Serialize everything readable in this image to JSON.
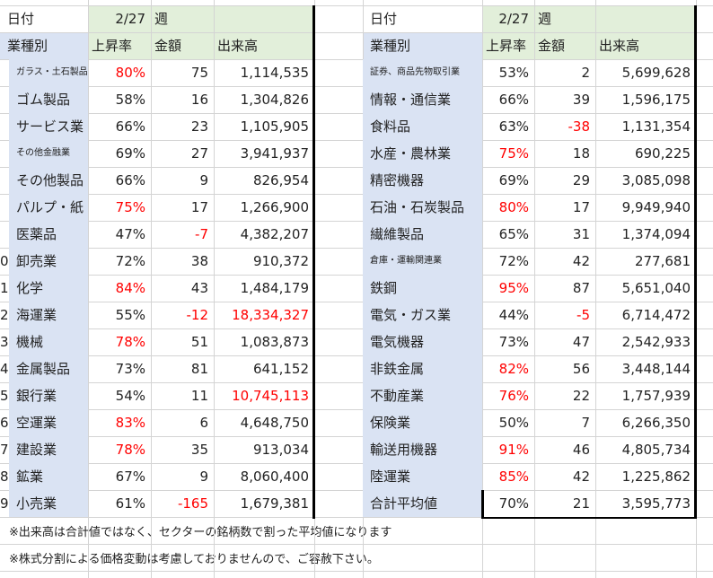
{
  "header": {
    "date_label": "日付",
    "date_value": "2/27",
    "week_label": "週",
    "sector_label": "業種別",
    "rise_label": "上昇率",
    "amount_label": "金額",
    "volume_label": "出来高"
  },
  "colors": {
    "header_green": "#e2efda",
    "label_blue": "#dae3f3",
    "negative_red": "#ff0000"
  },
  "left_rows": [
    {
      "sector": "ガラス・土石製品",
      "rise": "80%",
      "amount": "75",
      "volume": "1,114,535",
      "rise_red": true,
      "amount_red": false,
      "volume_red": false,
      "small": true
    },
    {
      "sector": "ゴム製品",
      "rise": "58%",
      "amount": "16",
      "volume": "1,304,826",
      "rise_red": false,
      "amount_red": false,
      "volume_red": false,
      "small": false
    },
    {
      "sector": "サービス業",
      "rise": "66%",
      "amount": "23",
      "volume": "1,105,905",
      "rise_red": false,
      "amount_red": false,
      "volume_red": false,
      "small": false
    },
    {
      "sector": "その他金融業",
      "rise": "69%",
      "amount": "27",
      "volume": "3,941,937",
      "rise_red": false,
      "amount_red": false,
      "volume_red": false,
      "small": true
    },
    {
      "sector": "その他製品",
      "rise": "66%",
      "amount": "9",
      "volume": "826,954",
      "rise_red": false,
      "amount_red": false,
      "volume_red": false,
      "small": false
    },
    {
      "sector": "パルプ・紙",
      "rise": "75%",
      "amount": "17",
      "volume": "1,266,900",
      "rise_red": true,
      "amount_red": false,
      "volume_red": false,
      "small": false
    },
    {
      "sector": "医薬品",
      "rise": "47%",
      "amount": "-7",
      "volume": "4,382,207",
      "rise_red": false,
      "amount_red": true,
      "volume_red": false,
      "small": false
    },
    {
      "sector": "卸売業",
      "rise": "72%",
      "amount": "38",
      "volume": "910,372",
      "rise_red": false,
      "amount_red": false,
      "volume_red": false,
      "small": false
    },
    {
      "sector": "化学",
      "rise": "84%",
      "amount": "43",
      "volume": "1,484,179",
      "rise_red": true,
      "amount_red": false,
      "volume_red": false,
      "small": false
    },
    {
      "sector": "海運業",
      "rise": "55%",
      "amount": "-12",
      "volume": "18,334,327",
      "rise_red": false,
      "amount_red": true,
      "volume_red": true,
      "small": false
    },
    {
      "sector": "機械",
      "rise": "78%",
      "amount": "51",
      "volume": "1,083,873",
      "rise_red": true,
      "amount_red": false,
      "volume_red": false,
      "small": false
    },
    {
      "sector": "金属製品",
      "rise": "73%",
      "amount": "81",
      "volume": "641,152",
      "rise_red": false,
      "amount_red": false,
      "volume_red": false,
      "small": false
    },
    {
      "sector": "銀行業",
      "rise": "54%",
      "amount": "11",
      "volume": "10,745,113",
      "rise_red": false,
      "amount_red": false,
      "volume_red": true,
      "small": false
    },
    {
      "sector": "空運業",
      "rise": "83%",
      "amount": "6",
      "volume": "4,648,750",
      "rise_red": true,
      "amount_red": false,
      "volume_red": false,
      "small": false
    },
    {
      "sector": "建設業",
      "rise": "78%",
      "amount": "35",
      "volume": "913,034",
      "rise_red": true,
      "amount_red": false,
      "volume_red": false,
      "small": false
    },
    {
      "sector": "鉱業",
      "rise": "67%",
      "amount": "9",
      "volume": "8,060,400",
      "rise_red": false,
      "amount_red": false,
      "volume_red": false,
      "small": false
    },
    {
      "sector": "小売業",
      "rise": "61%",
      "amount": "-165",
      "volume": "1,679,381",
      "rise_red": false,
      "amount_red": true,
      "volume_red": false,
      "small": false
    }
  ],
  "right_rows": [
    {
      "sector": "証券、商品先物取引業",
      "rise": "53%",
      "amount": "2",
      "volume": "5,699,628",
      "rise_red": false,
      "amount_red": false,
      "volume_red": false,
      "small": true
    },
    {
      "sector": "情報・通信業",
      "rise": "66%",
      "amount": "39",
      "volume": "1,596,175",
      "rise_red": false,
      "amount_red": false,
      "volume_red": false,
      "small": false
    },
    {
      "sector": "食料品",
      "rise": "63%",
      "amount": "-38",
      "volume": "1,131,354",
      "rise_red": false,
      "amount_red": true,
      "volume_red": false,
      "small": false
    },
    {
      "sector": "水産・農林業",
      "rise": "75%",
      "amount": "18",
      "volume": "690,225",
      "rise_red": true,
      "amount_red": false,
      "volume_red": false,
      "small": false
    },
    {
      "sector": "精密機器",
      "rise": "69%",
      "amount": "29",
      "volume": "3,085,098",
      "rise_red": false,
      "amount_red": false,
      "volume_red": false,
      "small": false
    },
    {
      "sector": "石油・石炭製品",
      "rise": "80%",
      "amount": "17",
      "volume": "9,949,940",
      "rise_red": true,
      "amount_red": false,
      "volume_red": false,
      "small": false
    },
    {
      "sector": "繊維製品",
      "rise": "65%",
      "amount": "31",
      "volume": "1,374,094",
      "rise_red": false,
      "amount_red": false,
      "volume_red": false,
      "small": false
    },
    {
      "sector": "倉庫・運輸関連業",
      "rise": "72%",
      "amount": "42",
      "volume": "277,681",
      "rise_red": false,
      "amount_red": false,
      "volume_red": false,
      "small": true
    },
    {
      "sector": "鉄鋼",
      "rise": "95%",
      "amount": "87",
      "volume": "5,651,040",
      "rise_red": true,
      "amount_red": false,
      "volume_red": false,
      "small": false
    },
    {
      "sector": "電気・ガス業",
      "rise": "44%",
      "amount": "-5",
      "volume": "6,714,472",
      "rise_red": false,
      "amount_red": true,
      "volume_red": false,
      "small": false
    },
    {
      "sector": "電気機器",
      "rise": "73%",
      "amount": "47",
      "volume": "2,542,933",
      "rise_red": false,
      "amount_red": false,
      "volume_red": false,
      "small": false
    },
    {
      "sector": "非鉄金属",
      "rise": "82%",
      "amount": "56",
      "volume": "3,448,144",
      "rise_red": true,
      "amount_red": false,
      "volume_red": false,
      "small": false
    },
    {
      "sector": "不動産業",
      "rise": "76%",
      "amount": "22",
      "volume": "1,757,939",
      "rise_red": true,
      "amount_red": false,
      "volume_red": false,
      "small": false
    },
    {
      "sector": "保険業",
      "rise": "50%",
      "amount": "7",
      "volume": "6,266,350",
      "rise_red": false,
      "amount_red": false,
      "volume_red": false,
      "small": false
    },
    {
      "sector": "輸送用機器",
      "rise": "91%",
      "amount": "46",
      "volume": "4,805,734",
      "rise_red": true,
      "amount_red": false,
      "volume_red": false,
      "small": false
    },
    {
      "sector": "陸運業",
      "rise": "85%",
      "amount": "42",
      "volume": "1,225,862",
      "rise_red": true,
      "amount_red": false,
      "volume_red": false,
      "small": false
    },
    {
      "sector": "合計平均値",
      "rise": "70%",
      "amount": "21",
      "volume": "3,595,773",
      "rise_red": false,
      "amount_red": false,
      "volume_red": false,
      "small": false
    }
  ],
  "row_number_fragments": [
    "0",
    "1",
    "2",
    "3",
    "4",
    "5",
    "6",
    "7",
    "8",
    "9"
  ],
  "notes": [
    "※出来高は合計値ではなく、セクターの銘柄数で割った平均値になります",
    "※株式分割による価格変動は考慮しておりませんので、ご容赦下さい。"
  ]
}
